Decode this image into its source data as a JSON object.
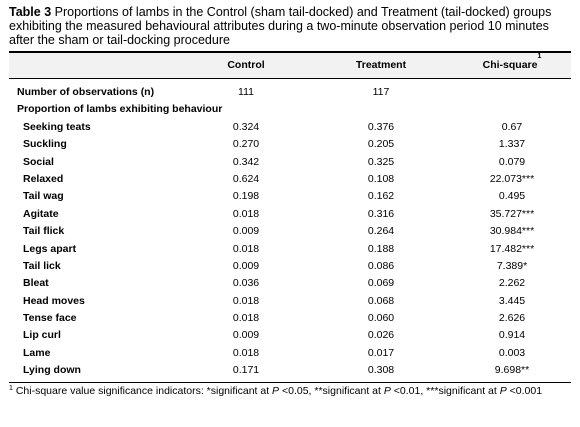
{
  "caption": {
    "label": "Table 3",
    "text": " Proportions of lambs in the Control (sham tail-docked) and Treatment (tail-docked) groups exhibiting the measured behavioural attributes during a two-minute observation period 10 minutes after the sham or tail-docking procedure"
  },
  "headers": {
    "control": "Control",
    "treatment": "Treatment",
    "chi": "Chi-square",
    "chi_sup": "1"
  },
  "observations": {
    "label": "Number of observations (n)",
    "control": "111",
    "treatment": "117"
  },
  "section_label": "Proportion of lambs exhibiting behaviour",
  "rows": [
    {
      "label": "Seeking teats",
      "control": "0.324",
      "treatment": "0.376",
      "chi": "0.67"
    },
    {
      "label": "Suckling",
      "control": "0.270",
      "treatment": "0.205",
      "chi": "1.337"
    },
    {
      "label": "Social",
      "control": "0.342",
      "treatment": "0.325",
      "chi": "0.079"
    },
    {
      "label": "Relaxed",
      "control": "0.624",
      "treatment": "0.108",
      "chi": "22.073***"
    },
    {
      "label": "Tail wag",
      "control": "0.198",
      "treatment": "0.162",
      "chi": "0.495"
    },
    {
      "label": "Agitate",
      "control": "0.018",
      "treatment": "0.316",
      "chi": "35.727***"
    },
    {
      "label": "Tail flick",
      "control": "0.009",
      "treatment": "0.264",
      "chi": "30.984***"
    },
    {
      "label": "Legs apart",
      "control": "0.018",
      "treatment": "0.188",
      "chi": "17.482***"
    },
    {
      "label": "Tail lick",
      "control": "0.009",
      "treatment": "0.086",
      "chi": "7.389*"
    },
    {
      "label": "Bleat",
      "control": "0.036",
      "treatment": "0.069",
      "chi": "2.262"
    },
    {
      "label": "Head moves",
      "control": "0.018",
      "treatment": "0.068",
      "chi": "3.445"
    },
    {
      "label": "Tense face",
      "control": "0.018",
      "treatment": "0.060",
      "chi": "2.626"
    },
    {
      "label": "Lip curl",
      "control": "0.009",
      "treatment": "0.026",
      "chi": "0.914"
    },
    {
      "label": "Lame",
      "control": "0.018",
      "treatment": "0.017",
      "chi": "0.003"
    },
    {
      "label": "Lying down",
      "control": "0.171",
      "treatment": "0.308",
      "chi": "9.698**"
    }
  ],
  "footnote": {
    "sup": "1",
    "text": " Chi-square value significance indicators: *significant at ",
    "p1": "P",
    "t1": " <0.05, **significant at ",
    "p2": "P",
    "t2": " <0.01, ***significant at ",
    "p3": "P",
    "t3": " <0.001"
  }
}
